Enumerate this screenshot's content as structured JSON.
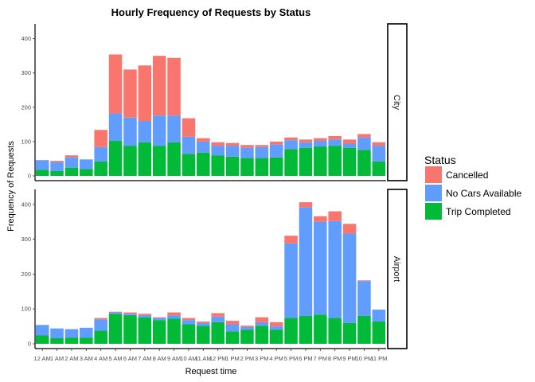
{
  "chart_data": {
    "type": "bar",
    "stacked": true,
    "title": "Hourly Frequency of Requests by Status",
    "xlabel": "Request time",
    "ylabel": "Frequency of Requests",
    "ylim": [
      0,
      420
    ],
    "yticks": [
      0,
      100,
      200,
      300,
      400
    ],
    "grid": false,
    "legend_position": "right",
    "legend_title": "Status",
    "categories": [
      "12 AM",
      "1 AM",
      "2 AM",
      "3 AM",
      "4 AM",
      "5 AM",
      "6 AM",
      "7 AM",
      "8 AM",
      "9 AM",
      "10 AM",
      "11 AM",
      "12 PM",
      "1 PM",
      "2 PM",
      "3 PM",
      "4 PM",
      "5 PM",
      "6 PM",
      "7 PM",
      "8 PM",
      "9 PM",
      "10 PM",
      "11 PM"
    ],
    "x_tick_labels": [
      "12 AM",
      "1 AM",
      "2 AM",
      "3 AM",
      "4 AM",
      "5 AM",
      "6 AM",
      "7 AM",
      "8 AM",
      "9 AM",
      "10 AM",
      "11 AM",
      "12 PM",
      "1 PM",
      "2 PM",
      "3 PM",
      "4 PM",
      "5 PM",
      "6 PM",
      "7 PM",
      "8 PM",
      "9 PM",
      "10 PM",
      "11 PM"
    ],
    "series_styles": [
      {
        "name": "Trip Completed",
        "color": "#00BA38"
      },
      {
        "name": "No Cars Available",
        "color": "#619CFF"
      },
      {
        "name": "Cancelled",
        "color": "#F8766D"
      }
    ],
    "legend_order": [
      "Cancelled",
      "No Cars Available",
      "Trip Completed"
    ],
    "panels": [
      {
        "label": "City",
        "series": [
          {
            "name": "Trip Completed",
            "values": [
              18,
              14,
              24,
              20,
              42,
              102,
              88,
              98,
              88,
              98,
              64,
              68,
              60,
              56,
              52,
              52,
              54,
              78,
              82,
              86,
              88,
              82,
              76,
              42
            ]
          },
          {
            "name": "No Cars Available",
            "values": [
              28,
              26,
              30,
              28,
              42,
              80,
              82,
              62,
              88,
              78,
              50,
              32,
              28,
              32,
              30,
              32,
              38,
              26,
              16,
              16,
              18,
              12,
              36,
              46
            ]
          },
          {
            "name": "Cancelled",
            "values": [
              0,
              4,
              6,
              0,
              50,
              172,
              140,
              162,
              174,
              168,
              54,
              10,
              10,
              8,
              8,
              6,
              8,
              8,
              8,
              8,
              10,
              12,
              10,
              10
            ]
          }
        ]
      },
      {
        "label": "Airport",
        "series": [
          {
            "name": "Trip Completed",
            "values": [
              24,
              16,
              18,
              18,
              38,
              86,
              82,
              76,
              68,
              72,
              56,
              52,
              62,
              36,
              40,
              52,
              40,
              74,
              80,
              84,
              74,
              60,
              80,
              64
            ]
          },
          {
            "name": "No Cars Available",
            "values": [
              30,
              28,
              24,
              28,
              32,
              4,
              4,
              6,
              6,
              10,
              12,
              8,
              16,
              20,
              8,
              10,
              10,
              214,
              312,
              266,
              278,
              256,
              100,
              34
            ]
          },
          {
            "name": "Cancelled",
            "values": [
              0,
              0,
              0,
              0,
              4,
              2,
              4,
              4,
              2,
              8,
              6,
              4,
              10,
              10,
              4,
              14,
              12,
              22,
              14,
              16,
              28,
              28,
              2,
              0
            ]
          }
        ]
      }
    ]
  }
}
